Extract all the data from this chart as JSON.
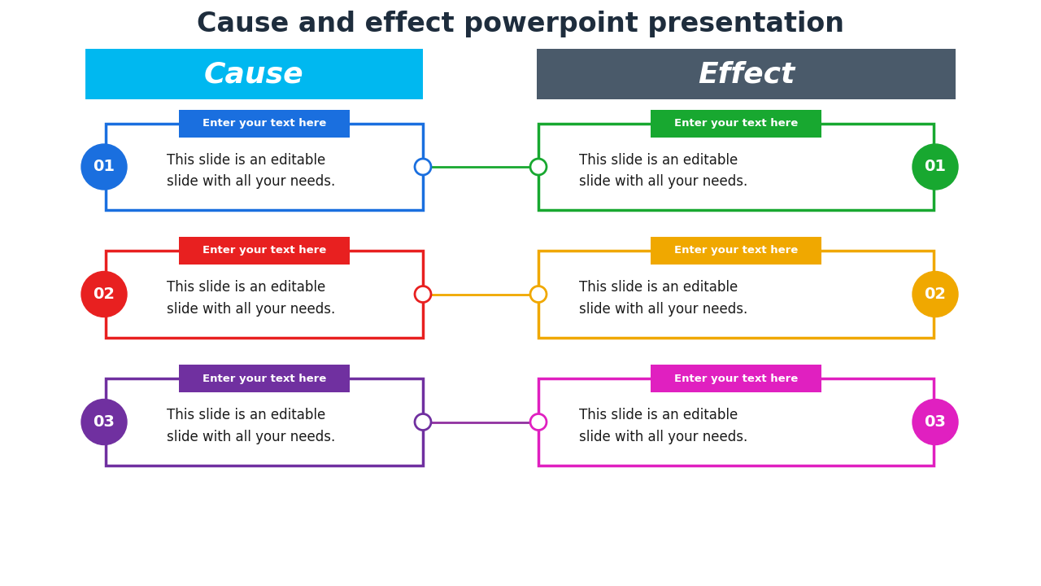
{
  "title": "Cause and effect powerpoint presentation",
  "title_color": "#1e2d3d",
  "title_fontsize": 24,
  "background_color": "#ffffff",
  "cause_header": "Cause",
  "cause_header_color": "#00b8f0",
  "effect_header": "Effect",
  "effect_header_color": "#4a5a6a",
  "rows": [
    {
      "label_text": "Enter your text here",
      "body_text": "This slide is an editable\nslide with all your needs.",
      "number": "01",
      "cause_color": "#1a6fdf",
      "effect_color": "#18a830",
      "connector_color": "#18a830"
    },
    {
      "label_text": "Enter your text here",
      "body_text": "This slide is an editable\nslide with all your needs.",
      "number": "02",
      "cause_color": "#e82020",
      "effect_color": "#f0a800",
      "connector_color": "#f0a800"
    },
    {
      "label_text": "Enter your text here",
      "body_text": "This slide is an editable\nslide with all your needs.",
      "number": "03",
      "cause_color": "#7030a0",
      "effect_color": "#e020c0",
      "connector_color": "#9030a0"
    }
  ]
}
